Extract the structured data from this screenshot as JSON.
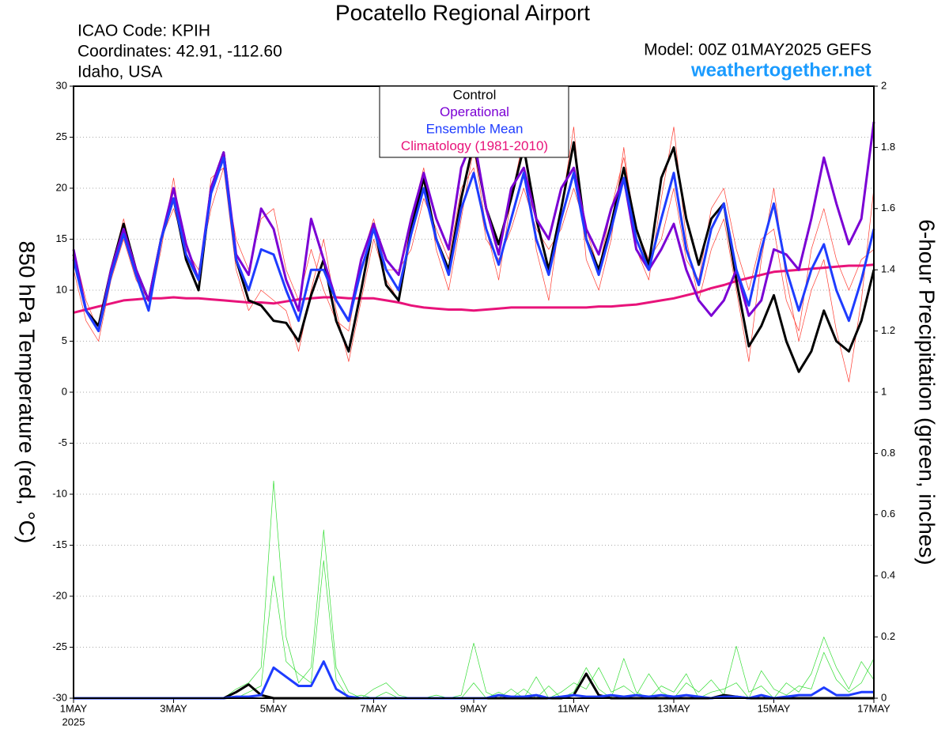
{
  "chart_data": {
    "type": "line",
    "title": "Pocatello Regional Airport",
    "info_lines": [
      "ICAO Code: KPIH",
      "Coordinates: 42.91, -112.60",
      "Idaho, USA"
    ],
    "model": "Model: 00Z 01MAY2025 GEFS",
    "site": "weathertogether.net",
    "ylabel": "850 hPa Temperature (red, °C)",
    "y2label": "6-hour Precipitation (green, inches)",
    "x_year_label": "2025",
    "xlim": [
      0,
      384
    ],
    "xticks": [
      {
        "value": 0,
        "label": "1MAY"
      },
      {
        "value": 48,
        "label": "3MAY"
      },
      {
        "value": 96,
        "label": "5MAY"
      },
      {
        "value": 144,
        "label": "7MAY"
      },
      {
        "value": 192,
        "label": "9MAY"
      },
      {
        "value": 240,
        "label": "11MAY"
      },
      {
        "value": 288,
        "label": "13MAY"
      },
      {
        "value": 336,
        "label": "15MAY"
      },
      {
        "value": 384,
        "label": "17MAY"
      }
    ],
    "ylim": [
      -30,
      30
    ],
    "yticks": [
      -30,
      -25,
      -20,
      -15,
      -10,
      -5,
      0,
      5,
      10,
      15,
      20,
      25,
      30
    ],
    "y2lim": [
      0,
      2
    ],
    "y2ticks": [
      0,
      0.2,
      0.4,
      0.6,
      0.8,
      1,
      1.2,
      1.4,
      1.6,
      1.8,
      2
    ],
    "grid": true,
    "x": [
      0,
      6,
      12,
      18,
      24,
      30,
      36,
      42,
      48,
      54,
      60,
      66,
      72,
      78,
      84,
      90,
      96,
      102,
      108,
      114,
      120,
      126,
      132,
      138,
      144,
      150,
      156,
      162,
      168,
      174,
      180,
      186,
      192,
      198,
      204,
      210,
      216,
      222,
      228,
      234,
      240,
      246,
      252,
      258,
      264,
      270,
      276,
      282,
      288,
      294,
      300,
      306,
      312,
      318,
      324,
      330,
      336,
      342,
      348,
      354,
      360,
      366,
      372,
      378,
      384
    ],
    "series": [
      {
        "color": "#ff3b30",
        "width": 0.7,
        "values": [
          14,
          9,
          6,
          12,
          17,
          12,
          8,
          14,
          21,
          13,
          10,
          21,
          22,
          12,
          8,
          10,
          9,
          8,
          4,
          10,
          15,
          8,
          3,
          9,
          15,
          11,
          9,
          17,
          22,
          14,
          10,
          17,
          24,
          16,
          11,
          19,
          25,
          14,
          9,
          18,
          26,
          13,
          10,
          15,
          24,
          14,
          11,
          19,
          26,
          15,
          9,
          14,
          17,
          10,
          3,
          13,
          20,
          11,
          5,
          10,
          13,
          6,
          1,
          9,
          20
        ]
      },
      {
        "color": "#ff3b30",
        "width": 0.7,
        "values": [
          12,
          7,
          5,
          11,
          15,
          11,
          9,
          15,
          18,
          14,
          12,
          18,
          22,
          15,
          12,
          17,
          18,
          12,
          9,
          14,
          10,
          7,
          6,
          13,
          17,
          12,
          12,
          14,
          19,
          16,
          13,
          20,
          22,
          15,
          13,
          16,
          20,
          16,
          14,
          16,
          20,
          16,
          12,
          18,
          23,
          16,
          13,
          15,
          20,
          13,
          11,
          18,
          20,
          14,
          10,
          15,
          16,
          9,
          6,
          14,
          18,
          13,
          10,
          13,
          14
        ]
      },
      {
        "color": "#33dd33",
        "width": 0.7,
        "axis": "y2",
        "values": [
          0,
          0,
          0,
          0,
          0,
          0,
          0,
          0,
          0,
          0,
          0,
          0,
          0,
          0.03,
          0.05,
          0.1,
          0.71,
          0.2,
          0.05,
          0.1,
          0.55,
          0.1,
          0.02,
          0,
          0.03,
          0.05,
          0.01,
          0,
          0,
          0,
          0,
          0.01,
          0.18,
          0.02,
          0,
          0.03,
          0,
          0.07,
          0,
          0.02,
          0.05,
          0.03,
          0.1,
          0.02,
          0.04,
          0.01,
          0.08,
          0.02,
          0,
          0.05,
          0.02,
          0.06,
          0.01,
          0.17,
          0.02,
          0.04,
          0,
          0.05,
          0.02,
          0.08,
          0.2,
          0.1,
          0.03,
          0.12,
          0.06
        ]
      },
      {
        "color": "#33dd33",
        "width": 0.7,
        "axis": "y2",
        "values": [
          0,
          0,
          0,
          0,
          0,
          0,
          0,
          0,
          0,
          0,
          0,
          0,
          0,
          0,
          0.02,
          0.04,
          0.4,
          0.12,
          0.08,
          0.05,
          0.45,
          0.06,
          0,
          0.01,
          0,
          0.02,
          0,
          0,
          0,
          0.01,
          0,
          0,
          0.05,
          0,
          0.02,
          0,
          0.03,
          0,
          0.04,
          0,
          0.02,
          0.1,
          0.03,
          0,
          0.13,
          0.02,
          0,
          0.04,
          0.02,
          0.08,
          0,
          0.02,
          0.03,
          0.05,
          0,
          0.09,
          0.03,
          0.01,
          0.04,
          0.03,
          0.15,
          0.06,
          0.02,
          0.05,
          0.13
        ]
      },
      {
        "color": "#000000",
        "width": 3,
        "axis": "y2",
        "values": [
          0,
          0,
          0,
          0,
          0,
          0,
          0,
          0,
          0,
          0,
          0,
          0,
          0,
          0.02,
          0.045,
          0.01,
          0,
          0,
          0,
          0,
          0,
          0,
          0,
          0,
          0,
          0,
          0,
          0,
          0,
          0,
          0,
          0,
          0,
          0,
          0,
          0,
          0,
          0,
          0,
          0,
          0.01,
          0.08,
          0.01,
          0,
          0,
          0,
          0,
          0,
          0,
          0,
          0,
          0,
          0.01,
          0.005,
          0,
          0,
          0,
          0,
          0,
          0,
          0,
          0,
          0,
          0,
          0
        ]
      },
      {
        "color": "#1e3cff",
        "width": 3,
        "axis": "y2",
        "values": [
          0,
          0,
          0,
          0,
          0,
          0,
          0,
          0,
          0,
          0,
          0,
          0,
          0,
          0.005,
          0.005,
          0.01,
          0.1,
          0.07,
          0.04,
          0.04,
          0.12,
          0.03,
          0.005,
          0,
          0,
          0,
          0,
          0,
          0,
          0,
          0,
          0,
          0,
          0,
          0.01,
          0.005,
          0.005,
          0.01,
          0,
          0.005,
          0.01,
          0.005,
          0.005,
          0.01,
          0.005,
          0.01,
          0.005,
          0.01,
          0.005,
          0.01,
          0.005,
          0,
          0.005,
          0.005,
          0,
          0.01,
          0,
          0.005,
          0.01,
          0.01,
          0.035,
          0.01,
          0.01,
          0.02,
          0.02
        ]
      },
      {
        "name": "Climatology (1981-2010)",
        "color": "#e8137a",
        "width": 3,
        "values": [
          7.8,
          8.1,
          8.4,
          8.7,
          9.0,
          9.1,
          9.2,
          9.2,
          9.3,
          9.2,
          9.2,
          9.1,
          9.0,
          8.9,
          8.8,
          8.8,
          8.7,
          8.9,
          9.1,
          9.2,
          9.3,
          9.3,
          9.2,
          9.2,
          9.2,
          9.0,
          8.8,
          8.5,
          8.3,
          8.2,
          8.1,
          8.1,
          8.0,
          8.1,
          8.2,
          8.3,
          8.3,
          8.3,
          8.3,
          8.3,
          8.3,
          8.3,
          8.4,
          8.4,
          8.5,
          8.6,
          8.8,
          9.0,
          9.2,
          9.5,
          9.8,
          10.2,
          10.5,
          10.9,
          11.2,
          11.5,
          11.8,
          11.9,
          12.0,
          12.1,
          12.2,
          12.3,
          12.4,
          12.4,
          12.5
        ]
      },
      {
        "name": "Control",
        "color": "#000000",
        "width": 3,
        "values": [
          13.5,
          8,
          6.5,
          12,
          16.5,
          12,
          9,
          15,
          19,
          13,
          10,
          20,
          23.5,
          13,
          9,
          8.5,
          7,
          6.8,
          5,
          9.5,
          13,
          7,
          4,
          10,
          16.5,
          10.5,
          9,
          16,
          21,
          15,
          12,
          19,
          24.5,
          18,
          14.5,
          19,
          24,
          17,
          12,
          18,
          24.5,
          15,
          12,
          16.5,
          22,
          16,
          12.5,
          21,
          24,
          17,
          12.5,
          17,
          18.5,
          11,
          4.5,
          6.5,
          9.5,
          5,
          2,
          4,
          8,
          5,
          4,
          7,
          12
        ]
      },
      {
        "name": "Operational",
        "color": "#7b00d4",
        "width": 3,
        "values": [
          14,
          8,
          6,
          12,
          16,
          12,
          9,
          15,
          20,
          14.5,
          11,
          20,
          23.5,
          13.5,
          11.5,
          18,
          16,
          11,
          8,
          17,
          13,
          9,
          7,
          13,
          16.5,
          13,
          11.5,
          17,
          21.5,
          17,
          14,
          22,
          25,
          18,
          13.5,
          20,
          22,
          17,
          15,
          20,
          22,
          16,
          13.5,
          18,
          21,
          14,
          12,
          14,
          16.5,
          12,
          9,
          7.5,
          9,
          12,
          7.5,
          9,
          14,
          13.5,
          12,
          17,
          23,
          18.5,
          14.5,
          17,
          26.5
        ]
      },
      {
        "name": "Ensemble Mean",
        "color": "#1e3cff",
        "width": 3,
        "values": [
          13,
          8,
          6,
          11.5,
          15.5,
          11.5,
          8,
          15,
          19,
          13.5,
          11,
          19.5,
          23,
          13,
          10,
          14,
          13.5,
          10,
          7,
          12,
          12,
          9,
          7,
          12,
          16,
          12,
          10,
          15.5,
          20,
          15,
          11.5,
          18,
          21.5,
          16,
          12.5,
          17,
          21.5,
          15,
          11.5,
          17,
          21.5,
          15,
          11.5,
          16,
          21,
          15,
          12,
          17,
          21.5,
          14,
          10.5,
          16,
          18.5,
          12,
          8.5,
          14,
          18.5,
          12,
          8,
          12,
          14.5,
          10,
          7,
          11,
          16
        ]
      }
    ]
  }
}
